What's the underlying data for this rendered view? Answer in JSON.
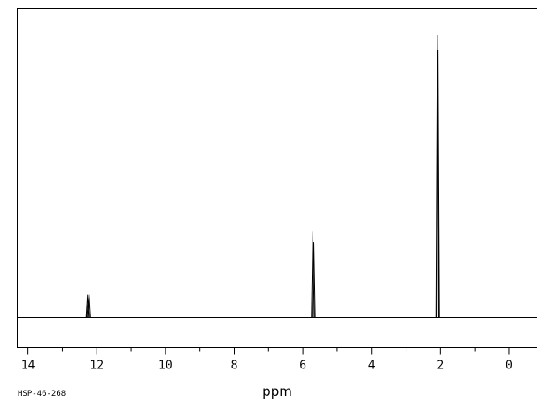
{
  "chart_data": {
    "type": "line",
    "title": "",
    "xlabel": "ppm",
    "ylabel": "",
    "xlim": [
      14.3,
      -0.8
    ],
    "ylim": [
      0,
      1
    ],
    "x_reversed": true,
    "grid": false,
    "x_ticks": [
      14,
      12,
      10,
      8,
      6,
      4,
      2,
      0
    ],
    "x_minor_step": 1,
    "spectrum_id": "HSP-46-268",
    "series": [
      {
        "peaks": [
          {
            "ppm": 12.27,
            "height": 0.081
          },
          {
            "ppm": 12.22,
            "height": 0.081
          },
          {
            "ppm": 12.25,
            "height": 0.06
          },
          {
            "ppm": 5.71,
            "height": 0.305
          },
          {
            "ppm": 5.68,
            "height": 0.268
          },
          {
            "ppm": 2.09,
            "height": 1.0
          },
          {
            "ppm": 2.07,
            "height": 0.948
          }
        ]
      }
    ]
  }
}
